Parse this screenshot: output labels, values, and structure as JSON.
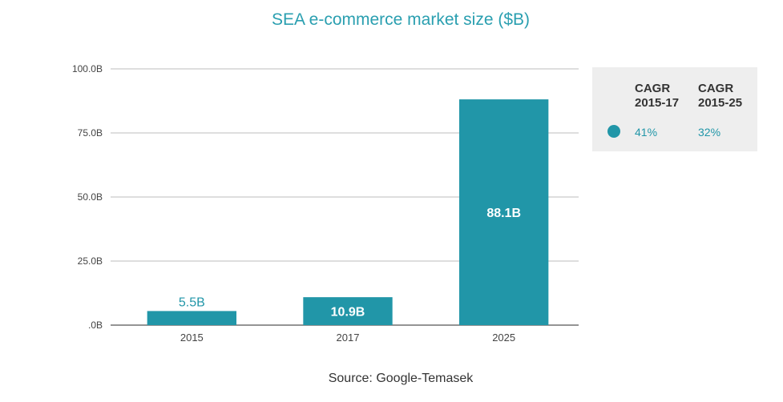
{
  "chart_data": {
    "type": "bar",
    "title": "SEA e-commerce market size ($B)",
    "categories": [
      "2015",
      "2017",
      "2025"
    ],
    "values": [
      5.5,
      10.9,
      88.1
    ],
    "data_labels": [
      "5.5B",
      "10.9B",
      "88.1B"
    ],
    "ylim": [
      0,
      100
    ],
    "yticks": [
      0,
      25,
      50,
      75,
      100
    ],
    "ytick_labels": [
      ".0B",
      "25.0B",
      "50.0B",
      "75.0B",
      "100.0B"
    ],
    "grid": true,
    "bar_color": "#2196a8",
    "gridline_color": "#bdbdbd"
  },
  "legend": {
    "col1_header": "CAGR\n2015-17",
    "col2_header": "CAGR\n2015-25",
    "col1_value": "41%",
    "col2_value": "32%",
    "marker_color": "#2196a8"
  },
  "source": "Source: Google-Temasek"
}
